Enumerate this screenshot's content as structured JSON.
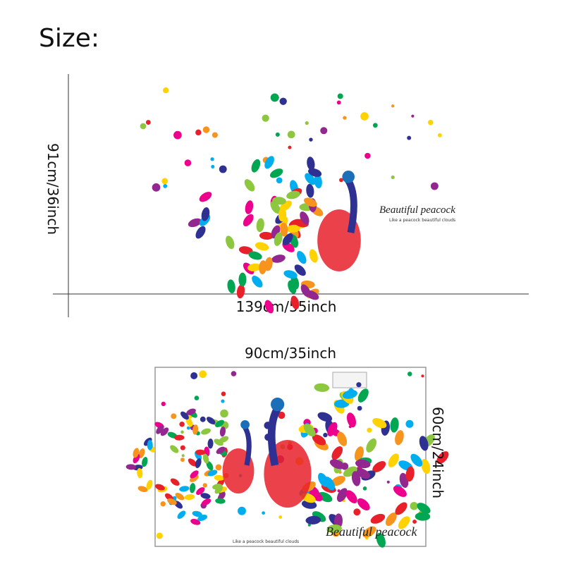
{
  "header": {
    "title": "Size:"
  },
  "installed": {
    "height": "91cm/36inch",
    "width": "139cm/55inch",
    "caption": "Beautiful peacock",
    "subcaption": "Like a peacock beautiful clouds"
  },
  "sheet": {
    "width": "90cm/35inch",
    "height": "60cm/24inch",
    "caption": "Beautiful peacock",
    "subcaption": "Like a peacock beautiful clouds"
  }
}
